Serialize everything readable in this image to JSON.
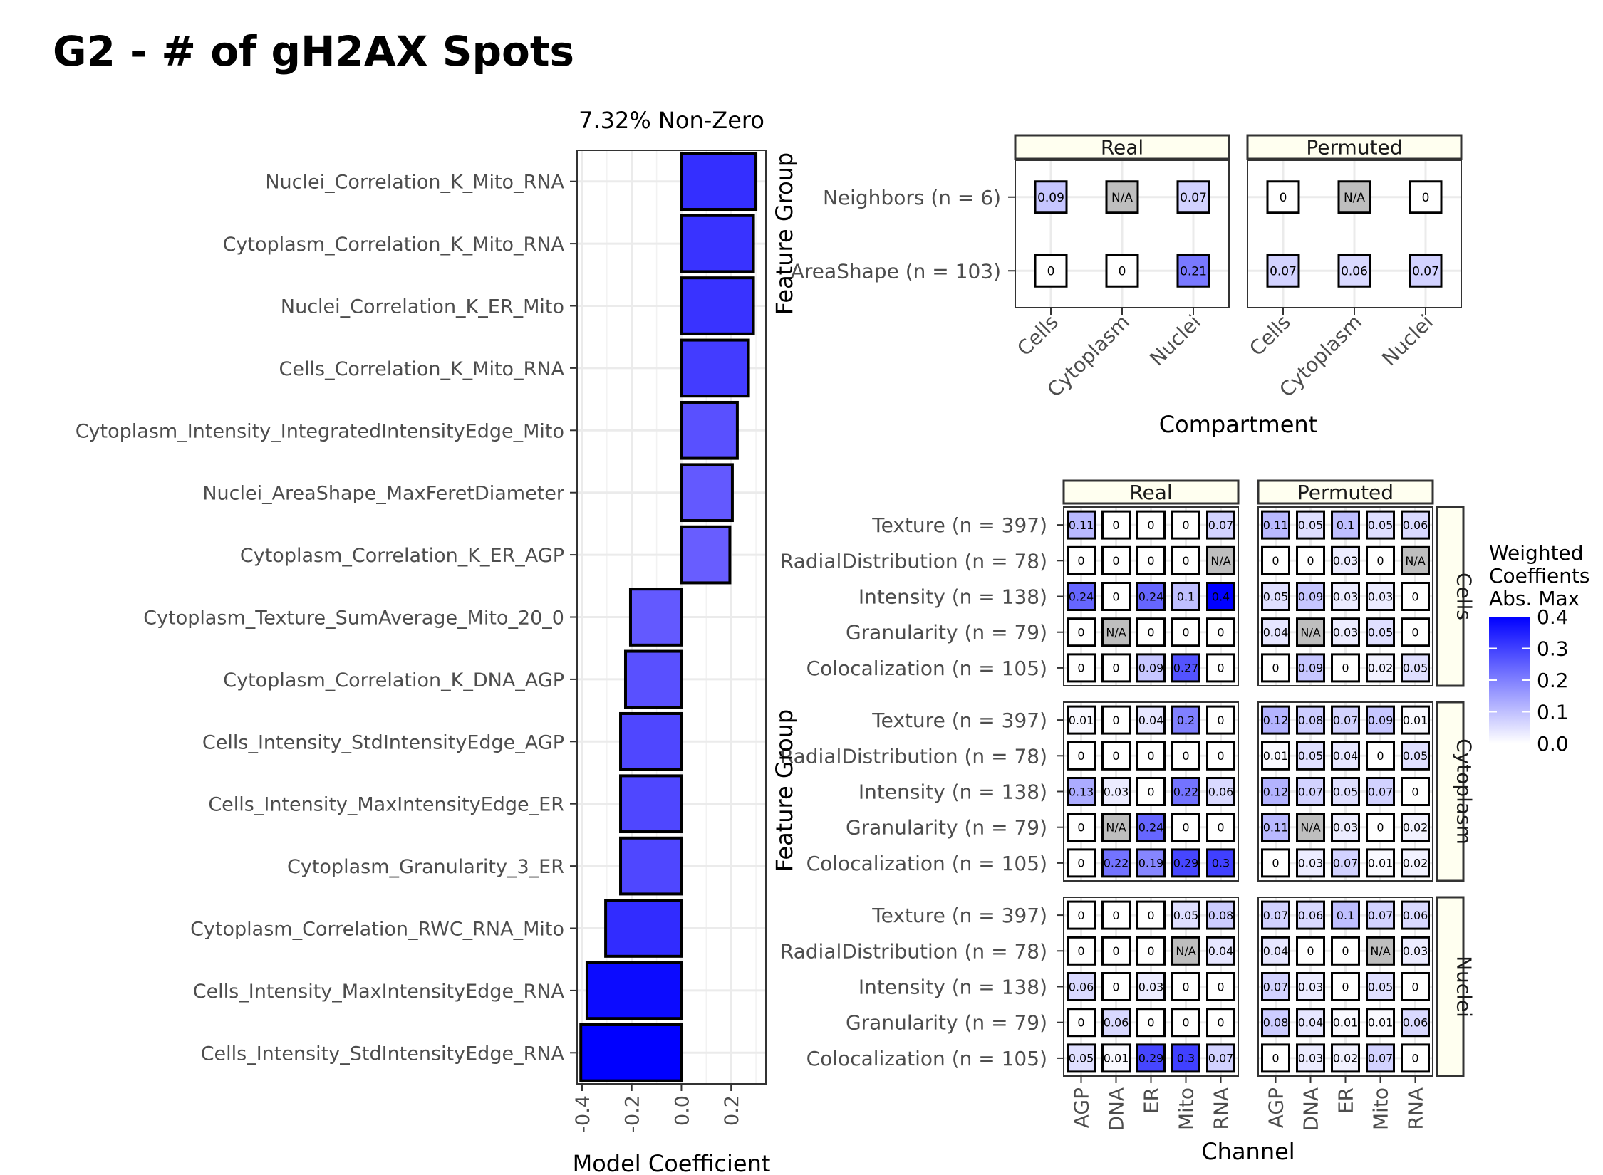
{
  "title": "G2 - # of gH2AX Spots",
  "color_scale": {
    "low": "#ffffff",
    "high": "#0000ff",
    "na": "#bebebe",
    "max": 0.4
  },
  "chart_data": [
    {
      "type": "bar",
      "orientation": "horizontal",
      "title": "7.32% Non-Zero",
      "xlabel": "Model Coefficient",
      "ylabel": "",
      "xlim": [
        -0.42,
        0.34
      ],
      "xticks": [
        "-0.4",
        "-0.2",
        "0.0",
        "0.2"
      ],
      "grid": true,
      "categories": [
        "Nuclei_Correlation_K_Mito_RNA",
        "Cytoplasm_Correlation_K_Mito_RNA",
        "Nuclei_Correlation_K_ER_Mito",
        "Cells_Correlation_K_Mito_RNA",
        "Cytoplasm_Intensity_IntegratedIntensityEdge_Mito",
        "Nuclei_AreaShape_MaxFeretDiameter",
        "Cytoplasm_Correlation_K_ER_AGP",
        "Cytoplasm_Texture_SumAverage_Mito_20_0",
        "Cytoplasm_Correlation_K_DNA_AGP",
        "Cells_Intensity_StdIntensityEdge_AGP",
        "Cells_Intensity_MaxIntensityEdge_ER",
        "Cytoplasm_Granularity_3_ER",
        "Cytoplasm_Correlation_RWC_RNA_Mito",
        "Cells_Intensity_MaxIntensityEdge_RNA",
        "Cells_Intensity_StdIntensityEdge_RNA"
      ],
      "values": [
        0.3,
        0.29,
        0.29,
        0.27,
        0.225,
        0.205,
        0.195,
        -0.205,
        -0.225,
        -0.245,
        -0.245,
        -0.245,
        -0.305,
        -0.38,
        -0.405
      ]
    },
    {
      "type": "heatmap",
      "ylabel": "Feature Group",
      "xlabel": "Compartment",
      "panels": [
        "Real",
        "Permuted"
      ],
      "columns": [
        "Cells",
        "Cytoplasm",
        "Nuclei"
      ],
      "rows": [
        "Neighbors (n = 6)",
        "AreaShape (n = 103)"
      ],
      "values": {
        "Real": [
          [
            "0.09",
            "N/A",
            "0.07"
          ],
          [
            "0",
            "0",
            "0.21"
          ]
        ],
        "Permuted": [
          [
            "0",
            "N/A",
            "0"
          ],
          [
            "0.07",
            "0.06",
            "0.07"
          ]
        ]
      }
    },
    {
      "type": "heatmap",
      "ylabel": "Feature Group",
      "xlabel": "Channel",
      "panels": [
        "Real",
        "Permuted"
      ],
      "facets": [
        "Cells",
        "Cytoplasm",
        "Nuclei"
      ],
      "columns": [
        "AGP",
        "DNA",
        "ER",
        "Mito",
        "RNA"
      ],
      "rows": [
        "Texture (n = 397)",
        "RadialDistribution (n = 78)",
        "Intensity (n = 138)",
        "Granularity (n = 79)",
        "Colocalization (n = 105)"
      ],
      "values": {
        "Cells": {
          "Real": [
            [
              "0.11",
              "0",
              "0",
              "0",
              "0.07"
            ],
            [
              "0",
              "0",
              "0",
              "0",
              "N/A"
            ],
            [
              "0.24",
              "0",
              "0.24",
              "0.1",
              "0.4"
            ],
            [
              "0",
              "N/A",
              "0",
              "0",
              "0"
            ],
            [
              "0",
              "0",
              "0.09",
              "0.27",
              "0"
            ]
          ],
          "Permuted": [
            [
              "0.11",
              "0.05",
              "0.1",
              "0.05",
              "0.06"
            ],
            [
              "0",
              "0",
              "0.03",
              "0",
              "N/A"
            ],
            [
              "0.05",
              "0.09",
              "0.03",
              "0.03",
              "0"
            ],
            [
              "0.04",
              "N/A",
              "0.03",
              "0.05",
              "0"
            ],
            [
              "0",
              "0.09",
              "0",
              "0.02",
              "0.05"
            ]
          ]
        },
        "Cytoplasm": {
          "Real": [
            [
              "0.01",
              "0",
              "0.04",
              "0.2",
              "0"
            ],
            [
              "0",
              "0",
              "0",
              "0",
              "0"
            ],
            [
              "0.13",
              "0.03",
              "0",
              "0.22",
              "0.06"
            ],
            [
              "0",
              "N/A",
              "0.24",
              "0",
              "0"
            ],
            [
              "0",
              "0.22",
              "0.19",
              "0.29",
              "0.3"
            ]
          ],
          "Permuted": [
            [
              "0.12",
              "0.08",
              "0.07",
              "0.09",
              "0.01"
            ],
            [
              "0.01",
              "0.05",
              "0.04",
              "0",
              "0.05"
            ],
            [
              "0.12",
              "0.07",
              "0.05",
              "0.07",
              "0"
            ],
            [
              "0.11",
              "N/A",
              "0.03",
              "0",
              "0.02"
            ],
            [
              "0",
              "0.03",
              "0.07",
              "0.01",
              "0.02"
            ]
          ]
        },
        "Nuclei": {
          "Real": [
            [
              "0",
              "0",
              "0",
              "0.05",
              "0.08"
            ],
            [
              "0",
              "0",
              "0",
              "N/A",
              "0.04"
            ],
            [
              "0.06",
              "0",
              "0.03",
              "0",
              "0"
            ],
            [
              "0",
              "0.06",
              "0",
              "0",
              "0"
            ],
            [
              "0.05",
              "0.01",
              "0.29",
              "0.3",
              "0.07"
            ]
          ],
          "Permuted": [
            [
              "0.07",
              "0.06",
              "0.1",
              "0.07",
              "0.06"
            ],
            [
              "0.04",
              "0",
              "0",
              "N/A",
              "0.03"
            ],
            [
              "0.07",
              "0.03",
              "0",
              "0.05",
              "0"
            ],
            [
              "0.08",
              "0.04",
              "0.01",
              "0.01",
              "0.06"
            ],
            [
              "0",
              "0.03",
              "0.02",
              "0.07",
              "0"
            ]
          ]
        }
      }
    }
  ],
  "legend": {
    "title_lines": [
      "Weighted",
      "Coeffients",
      "Abs. Max"
    ],
    "ticks": [
      "0.4",
      "0.3",
      "0.2",
      "0.1",
      "0.0"
    ],
    "tick_values": [
      0.4,
      0.3,
      0.2,
      0.1,
      0.0
    ]
  }
}
